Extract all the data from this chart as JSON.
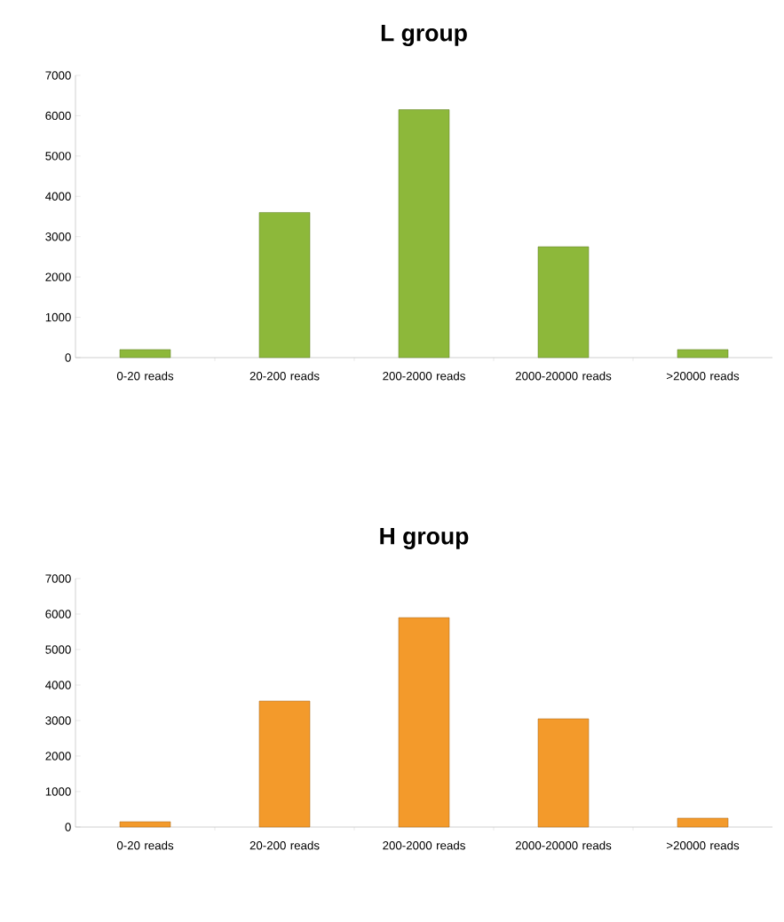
{
  "chart_data": [
    {
      "type": "bar",
      "title": "L group",
      "categories": [
        "0-20 reads",
        "20-200 reads",
        "200-2000 reads",
        "2000-20000 reads",
        ">20000 reads"
      ],
      "values": [
        200,
        3600,
        6150,
        2750,
        200
      ],
      "color": "#8db83a",
      "ylim": [
        0,
        7000
      ],
      "yticks": [
        0,
        1000,
        2000,
        3000,
        4000,
        5000,
        6000,
        7000
      ],
      "grid": false
    },
    {
      "type": "bar",
      "title": "H group",
      "categories": [
        "0-20 reads",
        "20-200 reads",
        "200-2000 reads",
        "2000-20000 reads",
        ">20000 reads"
      ],
      "values": [
        150,
        3550,
        5900,
        3050,
        250
      ],
      "color": "#f39a2b",
      "ylim": [
        0,
        7000
      ],
      "yticks": [
        0,
        1000,
        2000,
        3000,
        4000,
        5000,
        6000,
        7000
      ],
      "grid": false
    }
  ]
}
